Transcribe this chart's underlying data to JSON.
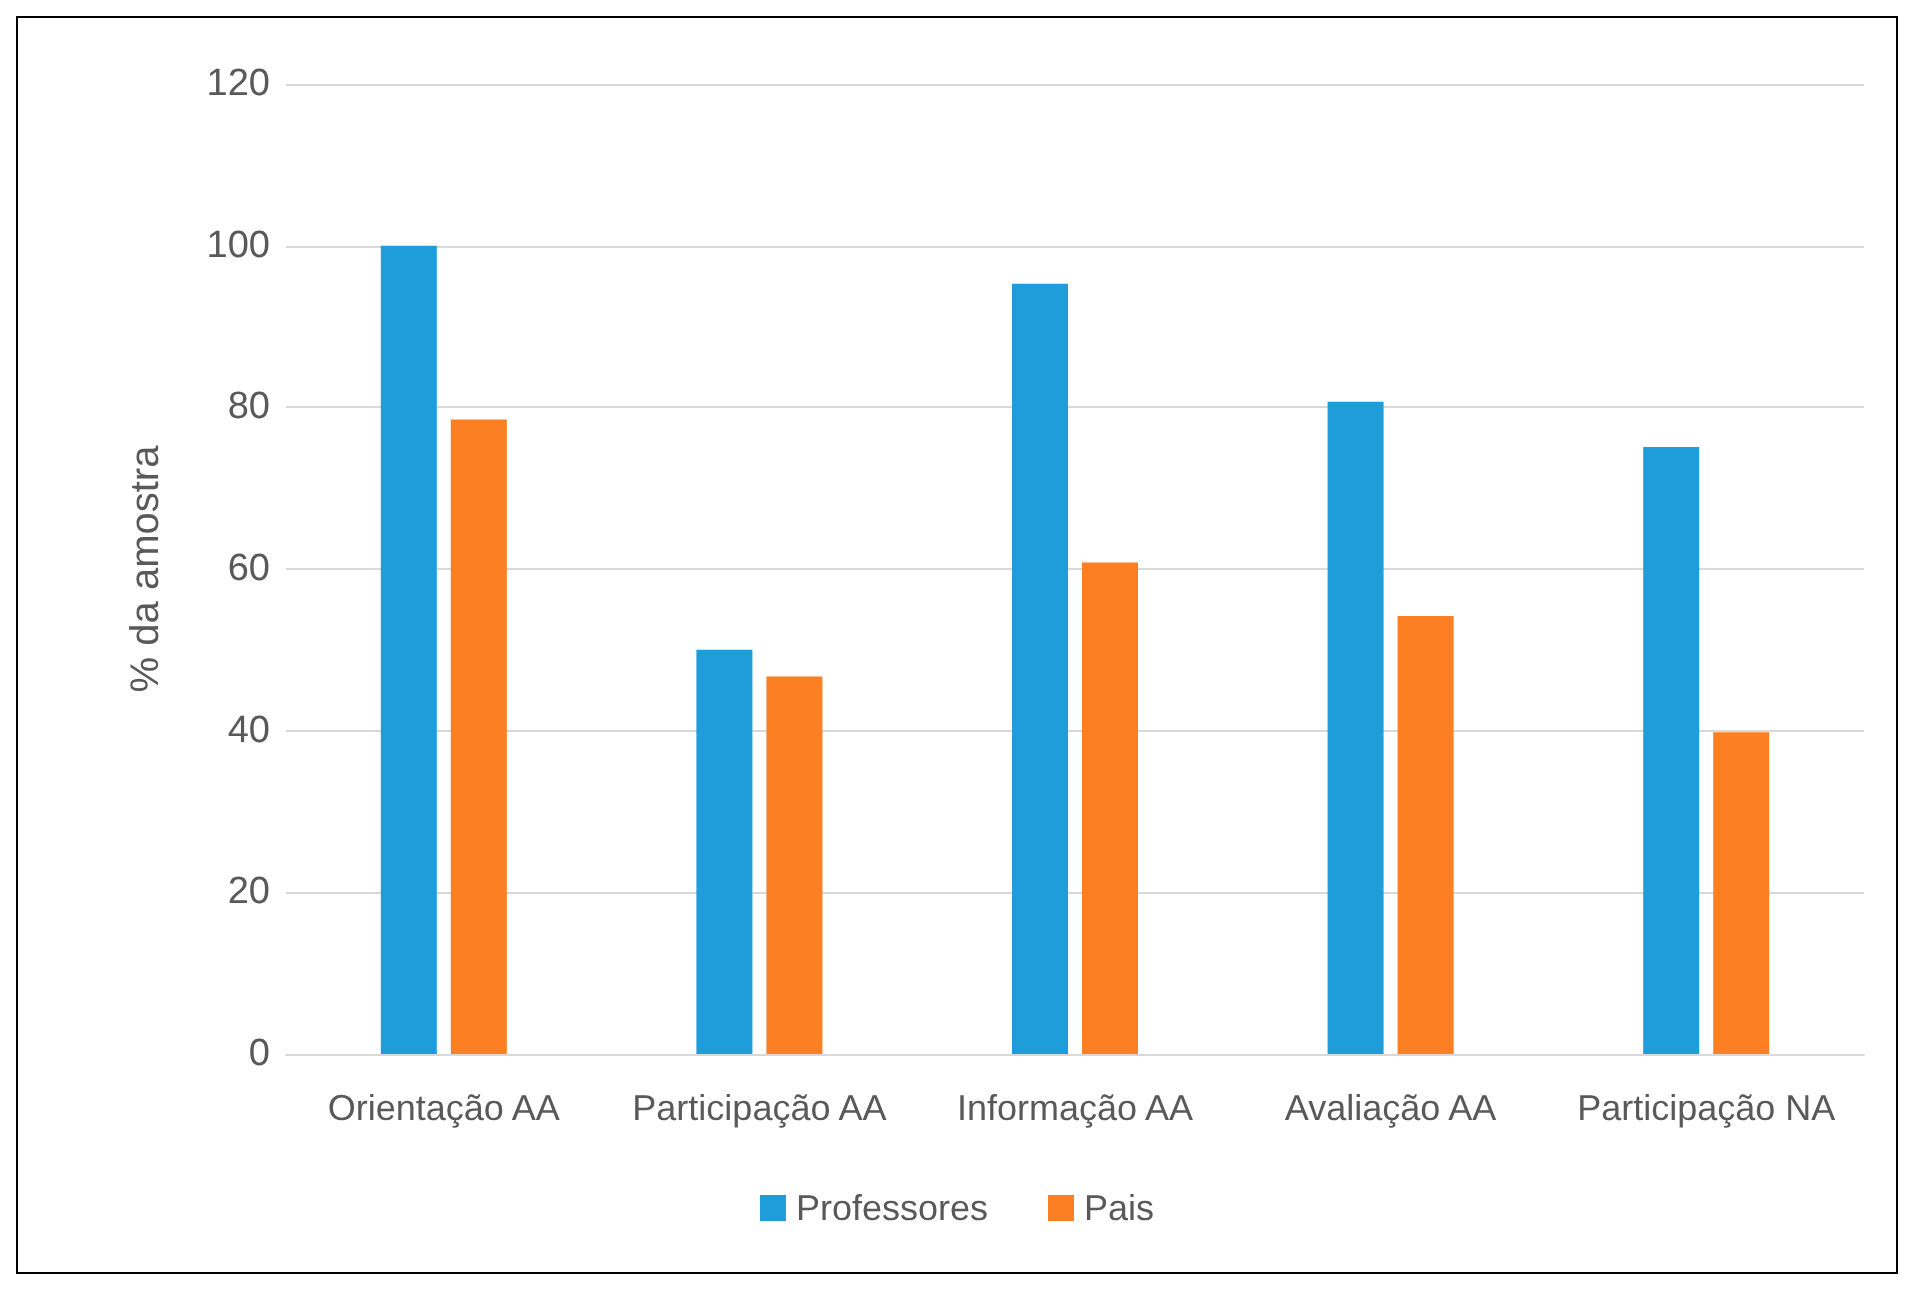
{
  "chart_data": {
    "type": "bar",
    "ylabel": "% da amostra",
    "categories": [
      "Orientação AA",
      "Participação AA",
      "Informação AA",
      "Avaliação AA",
      "Participação NA"
    ],
    "series": [
      {
        "name": "Professores",
        "color": "#1f9ddb",
        "values": [
          100,
          50,
          95.3,
          80.7,
          75.1
        ]
      },
      {
        "name": "Pais",
        "color": "#fd7f23",
        "values": [
          78.5,
          46.7,
          60.8,
          54.2,
          39.8
        ]
      }
    ],
    "ylim": [
      0,
      120
    ],
    "yticks": [
      0,
      20,
      40,
      60,
      80,
      100,
      120
    ],
    "grid": "y",
    "legend": "bottom"
  }
}
